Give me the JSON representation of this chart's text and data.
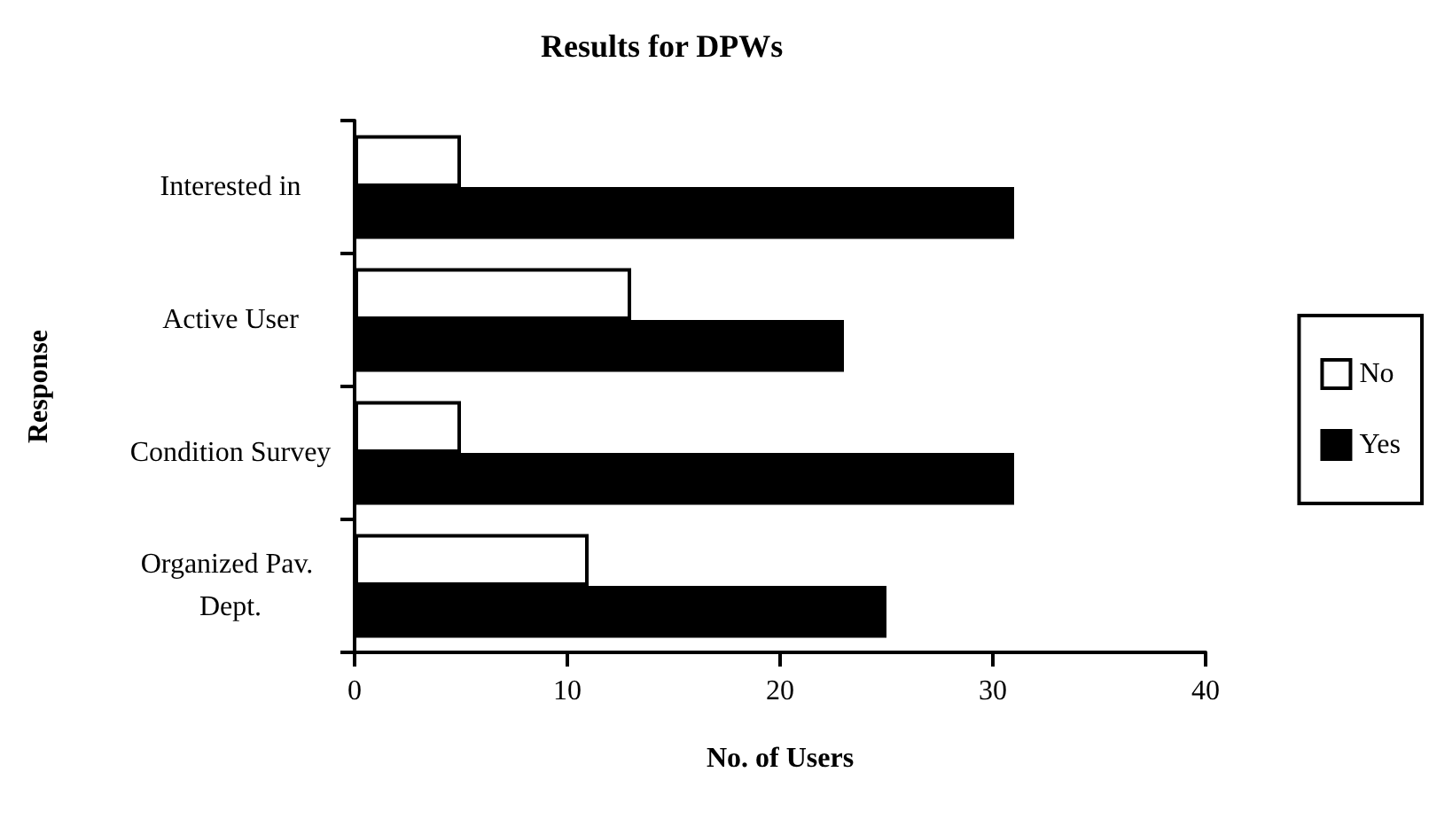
{
  "chart_data": {
    "type": "bar",
    "orientation": "horizontal",
    "title": "Results for DPWs",
    "xlabel": "No. of Users",
    "ylabel": "Response",
    "categories": [
      "Interested in",
      "Active User",
      "Condition Survey",
      "Organized Pav. Dept."
    ],
    "series": [
      {
        "name": "No",
        "color": "#ffffff",
        "values": [
          5,
          13,
          5,
          11
        ]
      },
      {
        "name": "Yes",
        "color": "#000000",
        "values": [
          31,
          23,
          31,
          25
        ]
      }
    ],
    "xlim": [
      0,
      40
    ],
    "xticks": [
      0,
      10,
      20,
      30,
      40
    ],
    "grid": false,
    "legend": "right"
  }
}
